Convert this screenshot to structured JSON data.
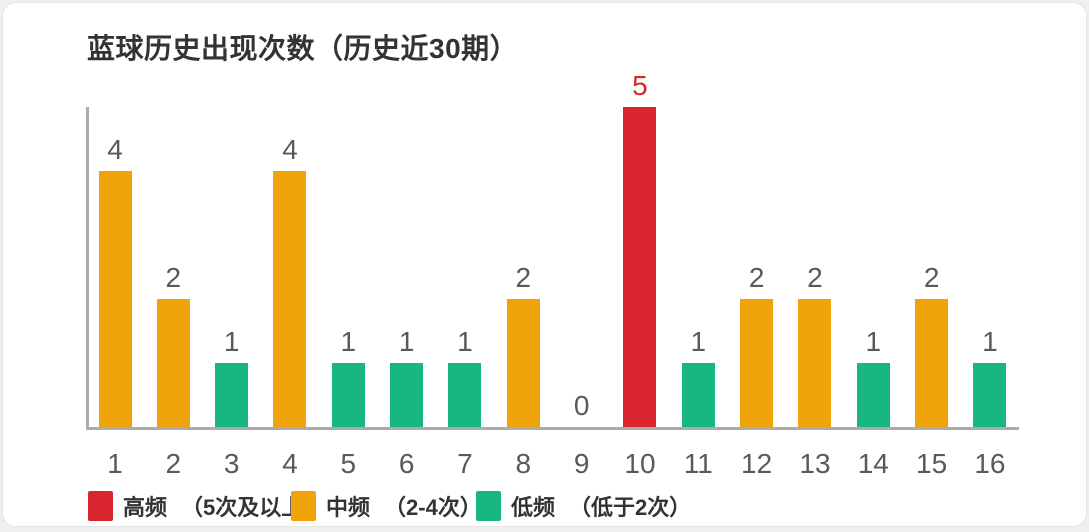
{
  "page": {
    "background": "#EFEFEF"
  },
  "card": {
    "background": "#FFFFFF",
    "border_color": "#E4E4E4"
  },
  "colors": {
    "high": "#D9262E",
    "mid": "#F0A30A",
    "low": "#17B77F",
    "axis_line": "#ABABAB",
    "value_label": "#595959",
    "tick_label": "#595959",
    "title_text": "#333333",
    "legend_text": "#333333"
  },
  "legend": {
    "items": [
      {
        "name": "高频",
        "range": "（5次及以上）",
        "color_key": "high"
      },
      {
        "name": "中频",
        "range": "（2-4次）",
        "color_key": "mid"
      },
      {
        "name": "低频",
        "range": "（低于2次）",
        "color_key": "low"
      }
    ]
  },
  "chart_data": {
    "type": "bar",
    "title": "蓝球历史出现次数（历史近30期）",
    "categories": [
      "1",
      "2",
      "3",
      "4",
      "5",
      "6",
      "7",
      "8",
      "9",
      "10",
      "11",
      "12",
      "13",
      "14",
      "15",
      "16"
    ],
    "values": [
      4,
      2,
      1,
      4,
      1,
      1,
      1,
      2,
      0,
      5,
      1,
      2,
      2,
      1,
      2,
      1
    ],
    "bar_color_keys": [
      "mid",
      "mid",
      "low",
      "mid",
      "low",
      "low",
      "low",
      "mid",
      "none",
      "high",
      "low",
      "mid",
      "mid",
      "low",
      "mid",
      "low"
    ],
    "value_labels_shown": true,
    "xlabel": "",
    "ylabel": "",
    "ylim": [
      0,
      5
    ],
    "grid": false,
    "y_axis_ticks_shown": false,
    "legend_position": "bottom"
  }
}
